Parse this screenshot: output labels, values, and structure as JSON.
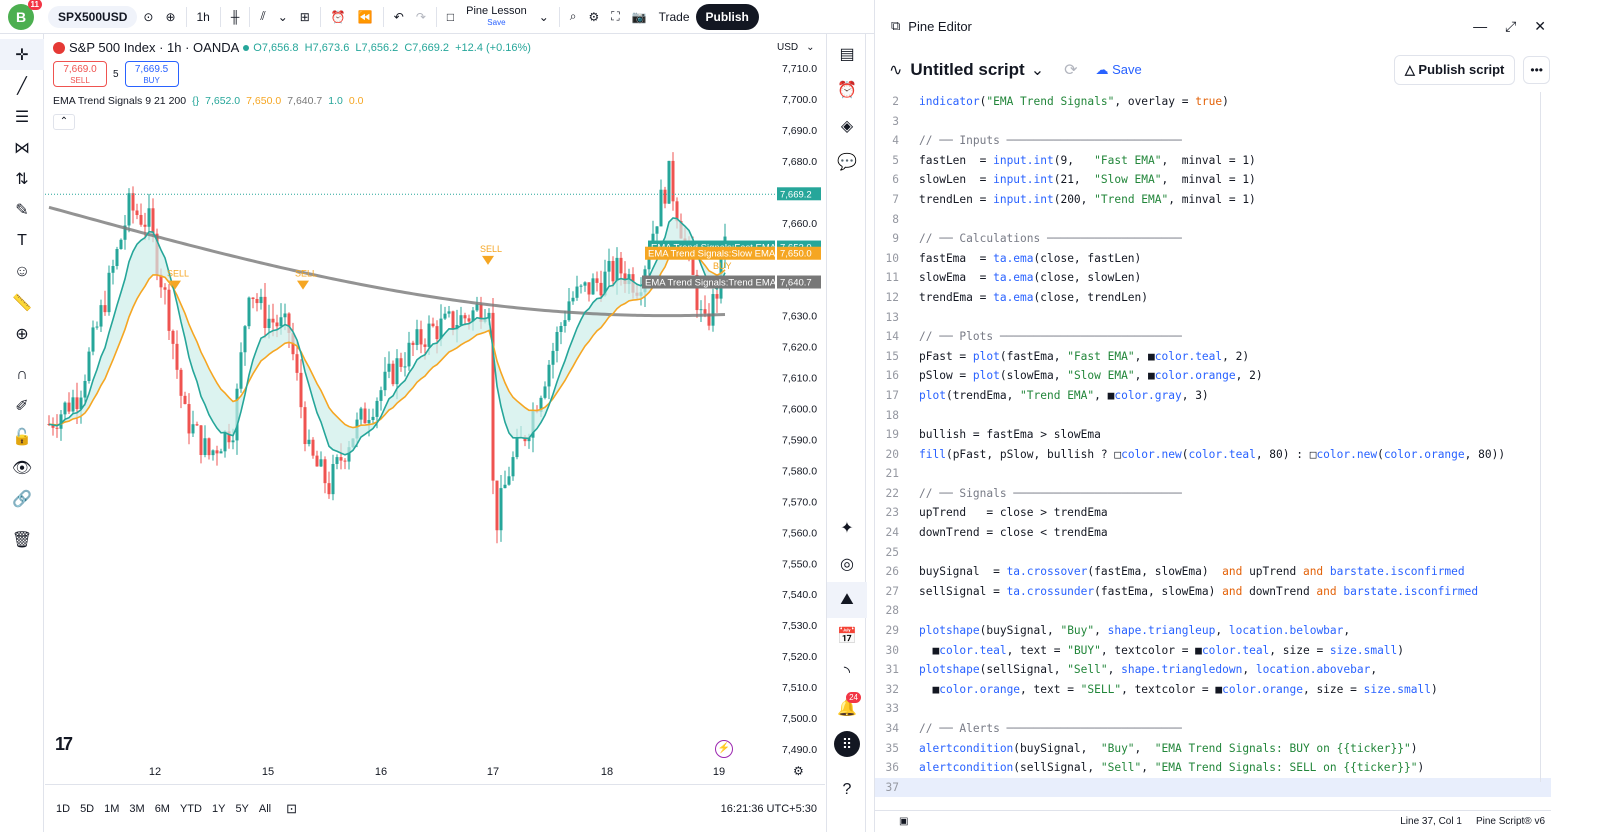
{
  "topbar": {
    "avatar_letter": "B",
    "avatar_badge": "11",
    "symbol": "SPX500USD",
    "interval": "1h",
    "lesson_name": "Pine Lesson",
    "lesson_status": "Save",
    "trade_label": "Trade",
    "publish_label": "Publish"
  },
  "chart": {
    "symbol_title": "S&P 500 Index · 1h · OANDA",
    "ohlc": "O7,656.8  H7,673.6  L7,656.2  C7,669.2  +12.4 (+0.16%)",
    "sell_price": "7,669.0",
    "sell_label": "SELL",
    "spread": "5",
    "buy_price": "7,669.5",
    "buy_label": "BUY",
    "indicator_name": "EMA Trend Signals 9 21 200",
    "ind_fast": "7,652.0",
    "ind_slow": "7,650.0",
    "ind_trend": "7,640.7",
    "ind_v1": "1.0",
    "ind_v2": "0.0",
    "currency": "USD",
    "price_ticks": [
      "7,710.0",
      "7,700.0",
      "7,690.0",
      "7,680.0",
      "7,670.0",
      "7,660.0",
      "7,650.0",
      "7,640.0",
      "7,630.0",
      "7,620.0",
      "7,610.0",
      "7,600.0",
      "7,590.0",
      "7,580.0",
      "7,570.0",
      "7,560.0",
      "7,550.0",
      "7,540.0",
      "7,530.0",
      "7,520.0",
      "7,510.0",
      "7,500.0",
      "7,490.0"
    ],
    "current_price": "7,669.2",
    "label_fast": "EMA Trend Signals:Fast EMA",
    "label_slow": "EMA Trend Signals:Slow EMA",
    "label_trend": "EMA Trend Signals:Trend EMA",
    "date_ticks": [
      "12",
      "15",
      "16",
      "17",
      "18",
      "19"
    ],
    "signal_sell": "SELL",
    "signal_buy": "BUY",
    "colors": {
      "up": "#26a69a",
      "down": "#ef5350",
      "fast": "#26a69a",
      "slow": "#f5a623",
      "trend": "#787878",
      "fill_bull": "#cdeee9",
      "fill_bear": "#fbe7c6"
    }
  },
  "bottombar": {
    "ranges": [
      "1D",
      "5D",
      "1M",
      "3M",
      "6M",
      "YTD",
      "1Y",
      "5Y",
      "All"
    ],
    "clock": "16:21:36 UTC+5:30"
  },
  "rightbar": {
    "alert_badge": "24"
  },
  "editor": {
    "panel_title": "Pine Editor",
    "script_title": "Untitled script",
    "save_label": "Save",
    "publish_script_label": "Publish script",
    "status_position": "Line 37, Col 1",
    "status_lang": "Pine Script® v6",
    "lines": [
      {
        "n": "2",
        "t": "indicator(\"EMA Trend Signals\", overlay = true)"
      },
      {
        "n": "3",
        "t": ""
      },
      {
        "n": "4",
        "t": "// ── Inputs ──────────────────────────"
      },
      {
        "n": "5",
        "t": "fastLen  = input.int(9,   \"Fast EMA\",  minval = 1)"
      },
      {
        "n": "6",
        "t": "slowLen  = input.int(21,  \"Slow EMA\",  minval = 1)"
      },
      {
        "n": "7",
        "t": "trendLen = input.int(200, \"Trend EMA\", minval = 1)"
      },
      {
        "n": "8",
        "t": ""
      },
      {
        "n": "9",
        "t": "// ── Calculations ────────────────────"
      },
      {
        "n": "10",
        "t": "fastEma  = ta.ema(close, fastLen)"
      },
      {
        "n": "11",
        "t": "slowEma  = ta.ema(close, slowLen)"
      },
      {
        "n": "12",
        "t": "trendEma = ta.ema(close, trendLen)"
      },
      {
        "n": "13",
        "t": ""
      },
      {
        "n": "14",
        "t": "// ── Plots ───────────────────────────"
      },
      {
        "n": "15",
        "t": "pFast = plot(fastEma, \"Fast EMA\", ■color.teal, 2)"
      },
      {
        "n": "16",
        "t": "pSlow = plot(slowEma, \"Slow EMA\", ■color.orange, 2)"
      },
      {
        "n": "17",
        "t": "plot(trendEma, \"Trend EMA\", ■color.gray, 3)"
      },
      {
        "n": "18",
        "t": ""
      },
      {
        "n": "19",
        "t": "bullish = fastEma > slowEma"
      },
      {
        "n": "20",
        "t": "fill(pFast, pSlow, bullish ? □color.new(color.teal, 80) : □color.new(color.orange, 80))"
      },
      {
        "n": "21",
        "t": ""
      },
      {
        "n": "22",
        "t": "// ── Signals ─────────────────────────"
      },
      {
        "n": "23",
        "t": "upTrend   = close > trendEma"
      },
      {
        "n": "24",
        "t": "downTrend = close < trendEma"
      },
      {
        "n": "25",
        "t": ""
      },
      {
        "n": "26",
        "t": "buySignal  = ta.crossover(fastEma, slowEma)  and upTrend and barstate.isconfirmed"
      },
      {
        "n": "27",
        "t": "sellSignal = ta.crossunder(fastEma, slowEma) and downTrend and barstate.isconfirmed"
      },
      {
        "n": "28",
        "t": ""
      },
      {
        "n": "29",
        "t": "plotshape(buySignal, \"Buy\", shape.triangleup, location.belowbar,"
      },
      {
        "n": "30",
        "t": "  ■color.teal, text = \"BUY\", textcolor = ■color.teal, size = size.small)"
      },
      {
        "n": "31",
        "t": "plotshape(sellSignal, \"Sell\", shape.triangledown, location.abovebar,"
      },
      {
        "n": "32",
        "t": "  ■color.orange, text = \"SELL\", textcolor = ■color.orange, size = size.small)"
      },
      {
        "n": "33",
        "t": ""
      },
      {
        "n": "34",
        "t": "// ── Alerts ──────────────────────────"
      },
      {
        "n": "35",
        "t": "alertcondition(buySignal,  \"Buy\",  \"EMA Trend Signals: BUY on {{ticker}}\")"
      },
      {
        "n": "36",
        "t": "alertcondition(sellSignal, \"Sell\", \"EMA Trend Signals: SELL on {{ticker}}\")"
      },
      {
        "n": "37",
        "t": ""
      }
    ]
  }
}
